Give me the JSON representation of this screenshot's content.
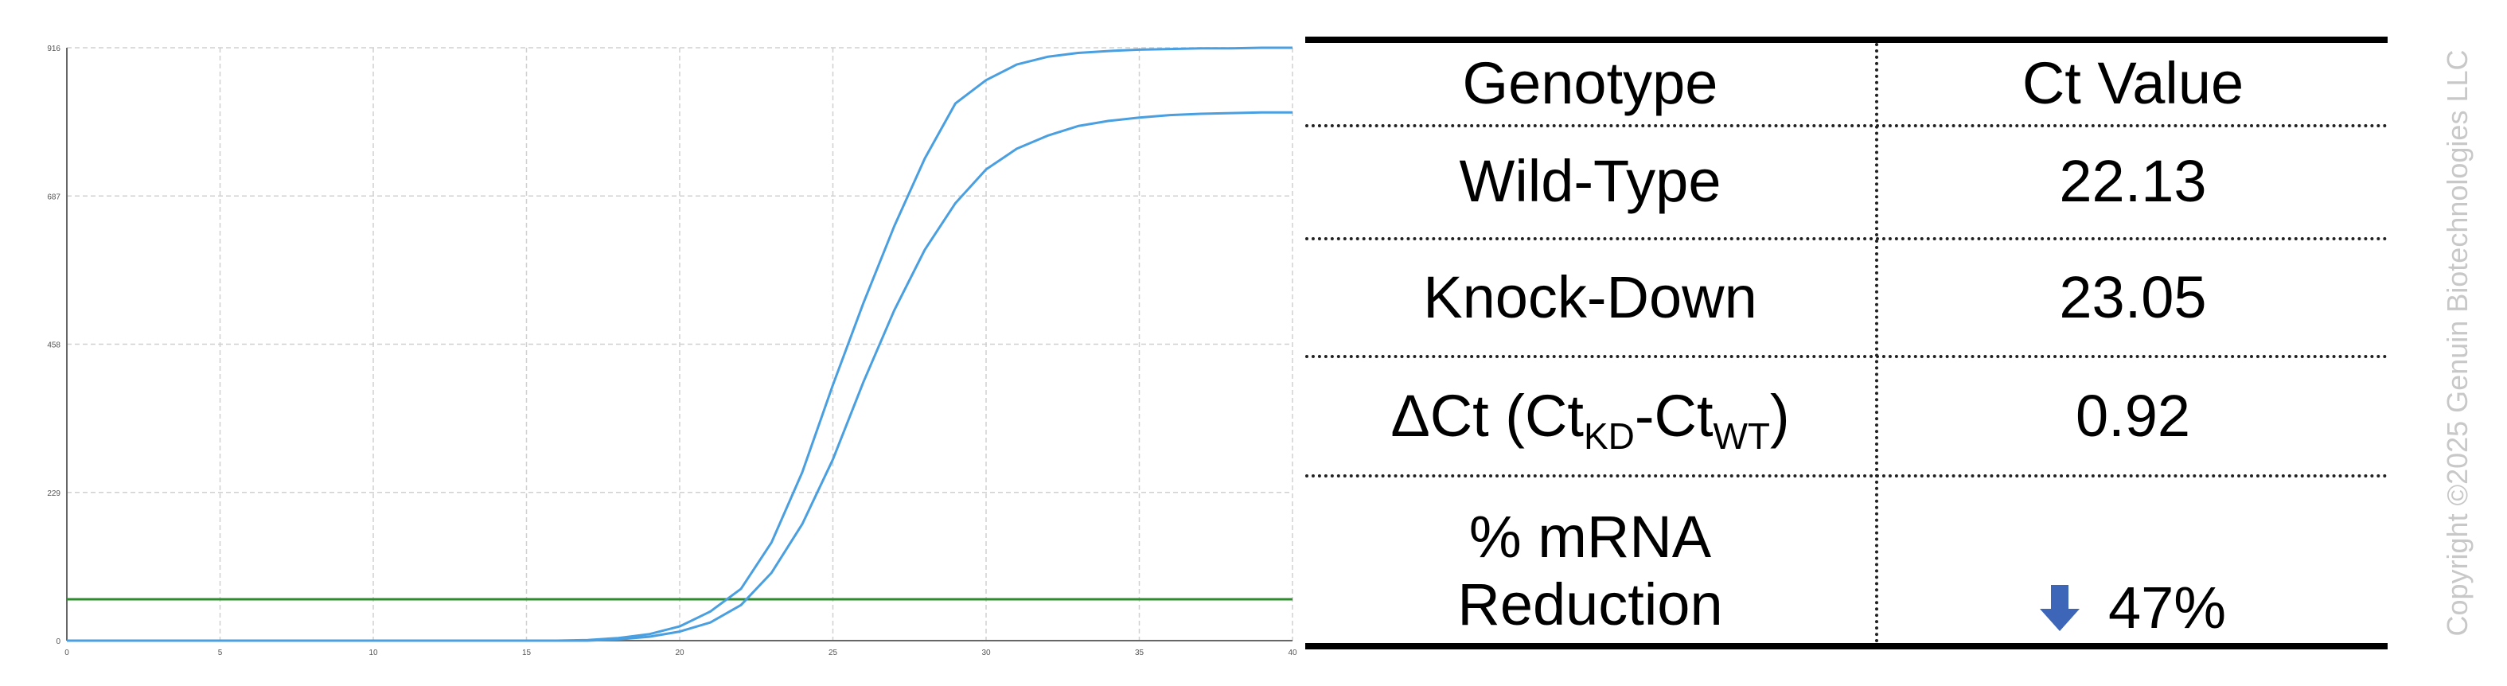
{
  "chart_data": {
    "type": "line",
    "title": "",
    "xlabel": "",
    "ylabel": "",
    "xlim": [
      0,
      40
    ],
    "ylim": [
      0,
      916
    ],
    "x_ticks": [
      0,
      5,
      10,
      15,
      20,
      25,
      30,
      35,
      40
    ],
    "y_ticks": [
      0,
      229,
      458,
      687,
      916
    ],
    "grid": true,
    "threshold": 64,
    "colors": {
      "curve": "#4a9fe0",
      "threshold": "#2e8b2e",
      "grid": "#d0d0d0"
    },
    "x": [
      0,
      1,
      2,
      3,
      4,
      5,
      6,
      7,
      8,
      9,
      10,
      11,
      12,
      13,
      14,
      15,
      16,
      17,
      18,
      19,
      20,
      21,
      22,
      23,
      24,
      25,
      26,
      27,
      28,
      29,
      30,
      31,
      32,
      33,
      34,
      35,
      36,
      37,
      38,
      39,
      40
    ],
    "series": [
      {
        "values": [
          0,
          0,
          0,
          0,
          0,
          0,
          0,
          0,
          0,
          0,
          0,
          0,
          0,
          0,
          0,
          0,
          0,
          1,
          4,
          10,
          22,
          45,
          80,
          152,
          260,
          395,
          522,
          640,
          745,
          830,
          866,
          890,
          902,
          908,
          911,
          913,
          914,
          915,
          915,
          916,
          916
        ]
      },
      {
        "values": [
          0,
          0,
          0,
          0,
          0,
          0,
          0,
          0,
          0,
          0,
          0,
          0,
          0,
          0,
          0,
          0,
          0,
          0,
          2,
          6,
          14,
          28,
          55,
          105,
          180,
          280,
          400,
          510,
          604,
          676,
          728,
          760,
          780,
          795,
          803,
          808,
          812,
          814,
          815,
          816,
          816
        ]
      }
    ]
  },
  "table": {
    "headers": [
      "Genotype",
      "Ct Value"
    ],
    "rows": [
      {
        "genotype": "Wild-Type",
        "ct": "22.13"
      },
      {
        "genotype": "Knock-Down",
        "ct": "23.05"
      }
    ],
    "delta_row": {
      "prefix": "ΔCt (Ct",
      "sub1": "KD",
      "mid": "-Ct",
      "sub2": "WT",
      "suffix": ")",
      "value": "0.92"
    },
    "reduction_row": {
      "line1": "% mRNA",
      "line2": "Reduction",
      "value": "47%",
      "icon": "down-arrow-icon",
      "icon_color": "#3d66b8"
    }
  },
  "copyright": "Copyright ©2025 Genuin Biotechnologies LLC"
}
